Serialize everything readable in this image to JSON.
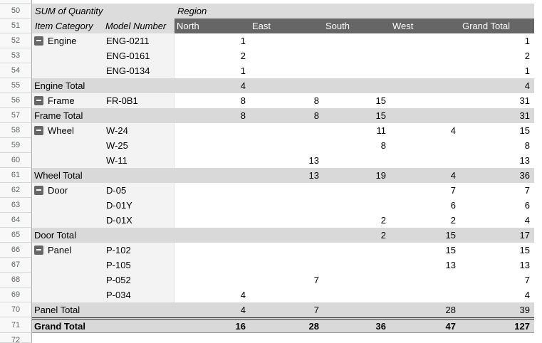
{
  "app": {
    "view": "spreadsheet-pivot-table",
    "colors": {
      "dark_header_bg": "#666666",
      "light_header_bg": "#dcdcdc",
      "total_row_bg": "#d9d9d9",
      "item_header_bg": "#f3f3f3",
      "gutter_bg": "#f8f8f8"
    }
  },
  "icons": {
    "collapse_button": "minus-icon"
  },
  "gutter": {
    "title_row_number": "50",
    "header_row_number": "51",
    "bottom_partial_row_number": "72"
  },
  "pivot": {
    "title_row": {
      "sum_label": "SUM of Quantity",
      "region_label": "Region"
    },
    "header_row": {
      "item_category": "Item Category",
      "model_number": "Model Number",
      "columns": [
        "North",
        "East",
        "South",
        "West",
        "Grand Total"
      ]
    },
    "rows": [
      {
        "row_num": "52",
        "type": "item",
        "collapse": true,
        "category": "Engine",
        "model": "ENG-0211",
        "values": [
          "1",
          "",
          "",
          "",
          "1"
        ]
      },
      {
        "row_num": "53",
        "type": "item",
        "collapse": false,
        "category": "",
        "model": "ENG-0161",
        "values": [
          "2",
          "",
          "",
          "",
          "2"
        ]
      },
      {
        "row_num": "54",
        "type": "item",
        "collapse": false,
        "category": "",
        "model": "ENG-0134",
        "values": [
          "1",
          "",
          "",
          "",
          "1"
        ]
      },
      {
        "row_num": "55",
        "type": "total",
        "category": "Engine Total",
        "values": [
          "4",
          "",
          "",
          "",
          "4"
        ]
      },
      {
        "row_num": "56",
        "type": "item",
        "collapse": true,
        "category": "Frame",
        "model": "FR-0B1",
        "values": [
          "8",
          "8",
          "15",
          "",
          "31"
        ]
      },
      {
        "row_num": "57",
        "type": "total",
        "category": "Frame Total",
        "values": [
          "8",
          "8",
          "15",
          "",
          "31"
        ]
      },
      {
        "row_num": "58",
        "type": "item",
        "collapse": true,
        "category": "Wheel",
        "model": "W-24",
        "values": [
          "",
          "",
          "11",
          "4",
          "15"
        ]
      },
      {
        "row_num": "59",
        "type": "item",
        "collapse": false,
        "category": "",
        "model": "W-25",
        "values": [
          "",
          "",
          "8",
          "",
          "8"
        ]
      },
      {
        "row_num": "60",
        "type": "item",
        "collapse": false,
        "category": "",
        "model": "W-11",
        "values": [
          "",
          "13",
          "",
          "",
          "13"
        ]
      },
      {
        "row_num": "61",
        "type": "total",
        "category": "Wheel Total",
        "values": [
          "",
          "13",
          "19",
          "4",
          "36"
        ]
      },
      {
        "row_num": "62",
        "type": "item",
        "collapse": true,
        "category": "Door",
        "model": "D-05",
        "values": [
          "",
          "",
          "",
          "7",
          "7"
        ]
      },
      {
        "row_num": "63",
        "type": "item",
        "collapse": false,
        "category": "",
        "model": "D-01Y",
        "values": [
          "",
          "",
          "",
          "6",
          "6"
        ]
      },
      {
        "row_num": "64",
        "type": "item",
        "collapse": false,
        "category": "",
        "model": "D-01X",
        "values": [
          "",
          "",
          "2",
          "2",
          "4"
        ]
      },
      {
        "row_num": "65",
        "type": "total",
        "category": "Door Total",
        "values": [
          "",
          "",
          "2",
          "15",
          "17"
        ]
      },
      {
        "row_num": "66",
        "type": "item",
        "collapse": true,
        "category": "Panel",
        "model": "P-102",
        "values": [
          "",
          "",
          "",
          "15",
          "15"
        ]
      },
      {
        "row_num": "67",
        "type": "item",
        "collapse": false,
        "category": "",
        "model": "P-105",
        "values": [
          "",
          "",
          "",
          "13",
          "13"
        ]
      },
      {
        "row_num": "68",
        "type": "item",
        "collapse": false,
        "category": "",
        "model": "P-052",
        "values": [
          "",
          "7",
          "",
          "",
          "7"
        ]
      },
      {
        "row_num": "69",
        "type": "item",
        "collapse": false,
        "category": "",
        "model": "P-034",
        "values": [
          "4",
          "",
          "",
          "",
          "4"
        ]
      },
      {
        "row_num": "70",
        "type": "total",
        "category": "Panel Total",
        "values": [
          "4",
          "7",
          "",
          "28",
          "39"
        ]
      },
      {
        "row_num": "71",
        "type": "grand",
        "category": "Grand Total",
        "values": [
          "16",
          "28",
          "36",
          "47",
          "127"
        ]
      }
    ]
  }
}
